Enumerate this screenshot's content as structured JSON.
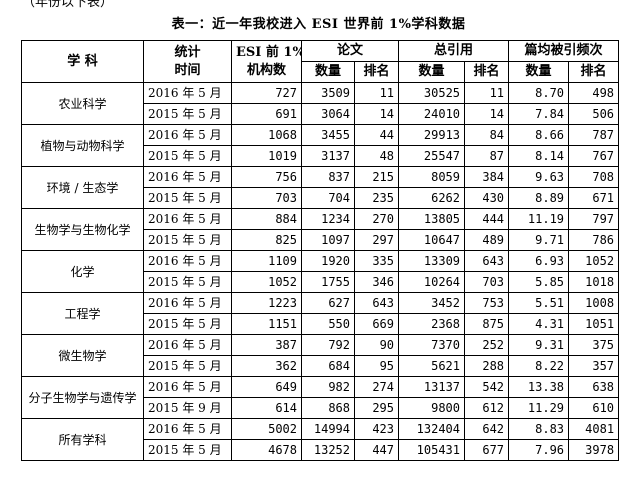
{
  "top_fragment": "（年份以下表）",
  "caption": "表一：近一年我校进入 ESI 世界前 1%学科数据",
  "headers": {
    "subject": "学 科",
    "period_line1": "统计",
    "period_line2": "时间",
    "esi_line1": "ESI 前 1%",
    "esi_line2": "机构数",
    "papers": "论文",
    "citations": "总引用",
    "avg_citations": "篇均被引频次",
    "count": "数量",
    "rank": "排名"
  },
  "rows": [
    {
      "subject": "农业科学",
      "data": [
        {
          "period": "2016 年 5 月",
          "esi": "727",
          "papers_count": "3509",
          "papers_rank": "11",
          "cit_count": "30525",
          "cit_rank": "11",
          "avg_count": "8.70",
          "avg_rank": "498"
        },
        {
          "period": "2015 年 5 月",
          "esi": "691",
          "papers_count": "3064",
          "papers_rank": "14",
          "cit_count": "24010",
          "cit_rank": "14",
          "avg_count": "7.84",
          "avg_rank": "506"
        }
      ]
    },
    {
      "subject": "植物与动物科学",
      "data": [
        {
          "period": "2016 年 5 月",
          "esi": "1068",
          "papers_count": "3455",
          "papers_rank": "44",
          "cit_count": "29913",
          "cit_rank": "84",
          "avg_count": "8.66",
          "avg_rank": "787"
        },
        {
          "period": "2015 年 5 月",
          "esi": "1019",
          "papers_count": "3137",
          "papers_rank": "48",
          "cit_count": "25547",
          "cit_rank": "87",
          "avg_count": "8.14",
          "avg_rank": "767"
        }
      ]
    },
    {
      "subject": "环境 / 生态学",
      "data": [
        {
          "period": "2016 年 5 月",
          "esi": "756",
          "papers_count": "837",
          "papers_rank": "215",
          "cit_count": "8059",
          "cit_rank": "384",
          "avg_count": "9.63",
          "avg_rank": "708"
        },
        {
          "period": "2015 年 5 月",
          "esi": "703",
          "papers_count": "704",
          "papers_rank": "235",
          "cit_count": "6262",
          "cit_rank": "430",
          "avg_count": "8.89",
          "avg_rank": "671"
        }
      ]
    },
    {
      "subject": "生物学与生物化学",
      "data": [
        {
          "period": "2016 年 5 月",
          "esi": "884",
          "papers_count": "1234",
          "papers_rank": "270",
          "cit_count": "13805",
          "cit_rank": "444",
          "avg_count": "11.19",
          "avg_rank": "797"
        },
        {
          "period": "2015 年 5 月",
          "esi": "825",
          "papers_count": "1097",
          "papers_rank": "297",
          "cit_count": "10647",
          "cit_rank": "489",
          "avg_count": "9.71",
          "avg_rank": "786"
        }
      ]
    },
    {
      "subject": "化学",
      "data": [
        {
          "period": "2016 年 5 月",
          "esi": "1109",
          "papers_count": "1920",
          "papers_rank": "335",
          "cit_count": "13309",
          "cit_rank": "643",
          "avg_count": "6.93",
          "avg_rank": "1052"
        },
        {
          "period": "2015 年 5 月",
          "esi": "1052",
          "papers_count": "1755",
          "papers_rank": "346",
          "cit_count": "10264",
          "cit_rank": "703",
          "avg_count": "5.85",
          "avg_rank": "1018"
        }
      ]
    },
    {
      "subject": "工程学",
      "data": [
        {
          "period": "2016 年 5 月",
          "esi": "1223",
          "papers_count": "627",
          "papers_rank": "643",
          "cit_count": "3452",
          "cit_rank": "753",
          "avg_count": "5.51",
          "avg_rank": "1008"
        },
        {
          "period": "2015 年 5 月",
          "esi": "1151",
          "papers_count": "550",
          "papers_rank": "669",
          "cit_count": "2368",
          "cit_rank": "875",
          "avg_count": "4.31",
          "avg_rank": "1051"
        }
      ]
    },
    {
      "subject": "微生物学",
      "data": [
        {
          "period": "2016 年 5 月",
          "esi": "387",
          "papers_count": "792",
          "papers_rank": "90",
          "cit_count": "7370",
          "cit_rank": "252",
          "avg_count": "9.31",
          "avg_rank": "375"
        },
        {
          "period": "2015 年 5 月",
          "esi": "362",
          "papers_count": "684",
          "papers_rank": "95",
          "cit_count": "5621",
          "cit_rank": "288",
          "avg_count": "8.22",
          "avg_rank": "357"
        }
      ]
    },
    {
      "subject": "分子生物学与遗传学",
      "data": [
        {
          "period": "2016 年 5 月",
          "esi": "649",
          "papers_count": "982",
          "papers_rank": "274",
          "cit_count": "13137",
          "cit_rank": "542",
          "avg_count": "13.38",
          "avg_rank": "638"
        },
        {
          "period": "2015 年 9 月",
          "esi": "614",
          "papers_count": "868",
          "papers_rank": "295",
          "cit_count": "9800",
          "cit_rank": "612",
          "avg_count": "11.29",
          "avg_rank": "610"
        }
      ]
    },
    {
      "subject": "所有学科",
      "data": [
        {
          "period": "2016 年 5 月",
          "esi": "5002",
          "papers_count": "14994",
          "papers_rank": "423",
          "cit_count": "132404",
          "cit_rank": "642",
          "avg_count": "8.83",
          "avg_rank": "4081"
        },
        {
          "period": "2015 年 5 月",
          "esi": "4678",
          "papers_count": "13252",
          "papers_rank": "447",
          "cit_count": "105431",
          "cit_rank": "677",
          "avg_count": "7.96",
          "avg_rank": "3978"
        }
      ]
    }
  ]
}
